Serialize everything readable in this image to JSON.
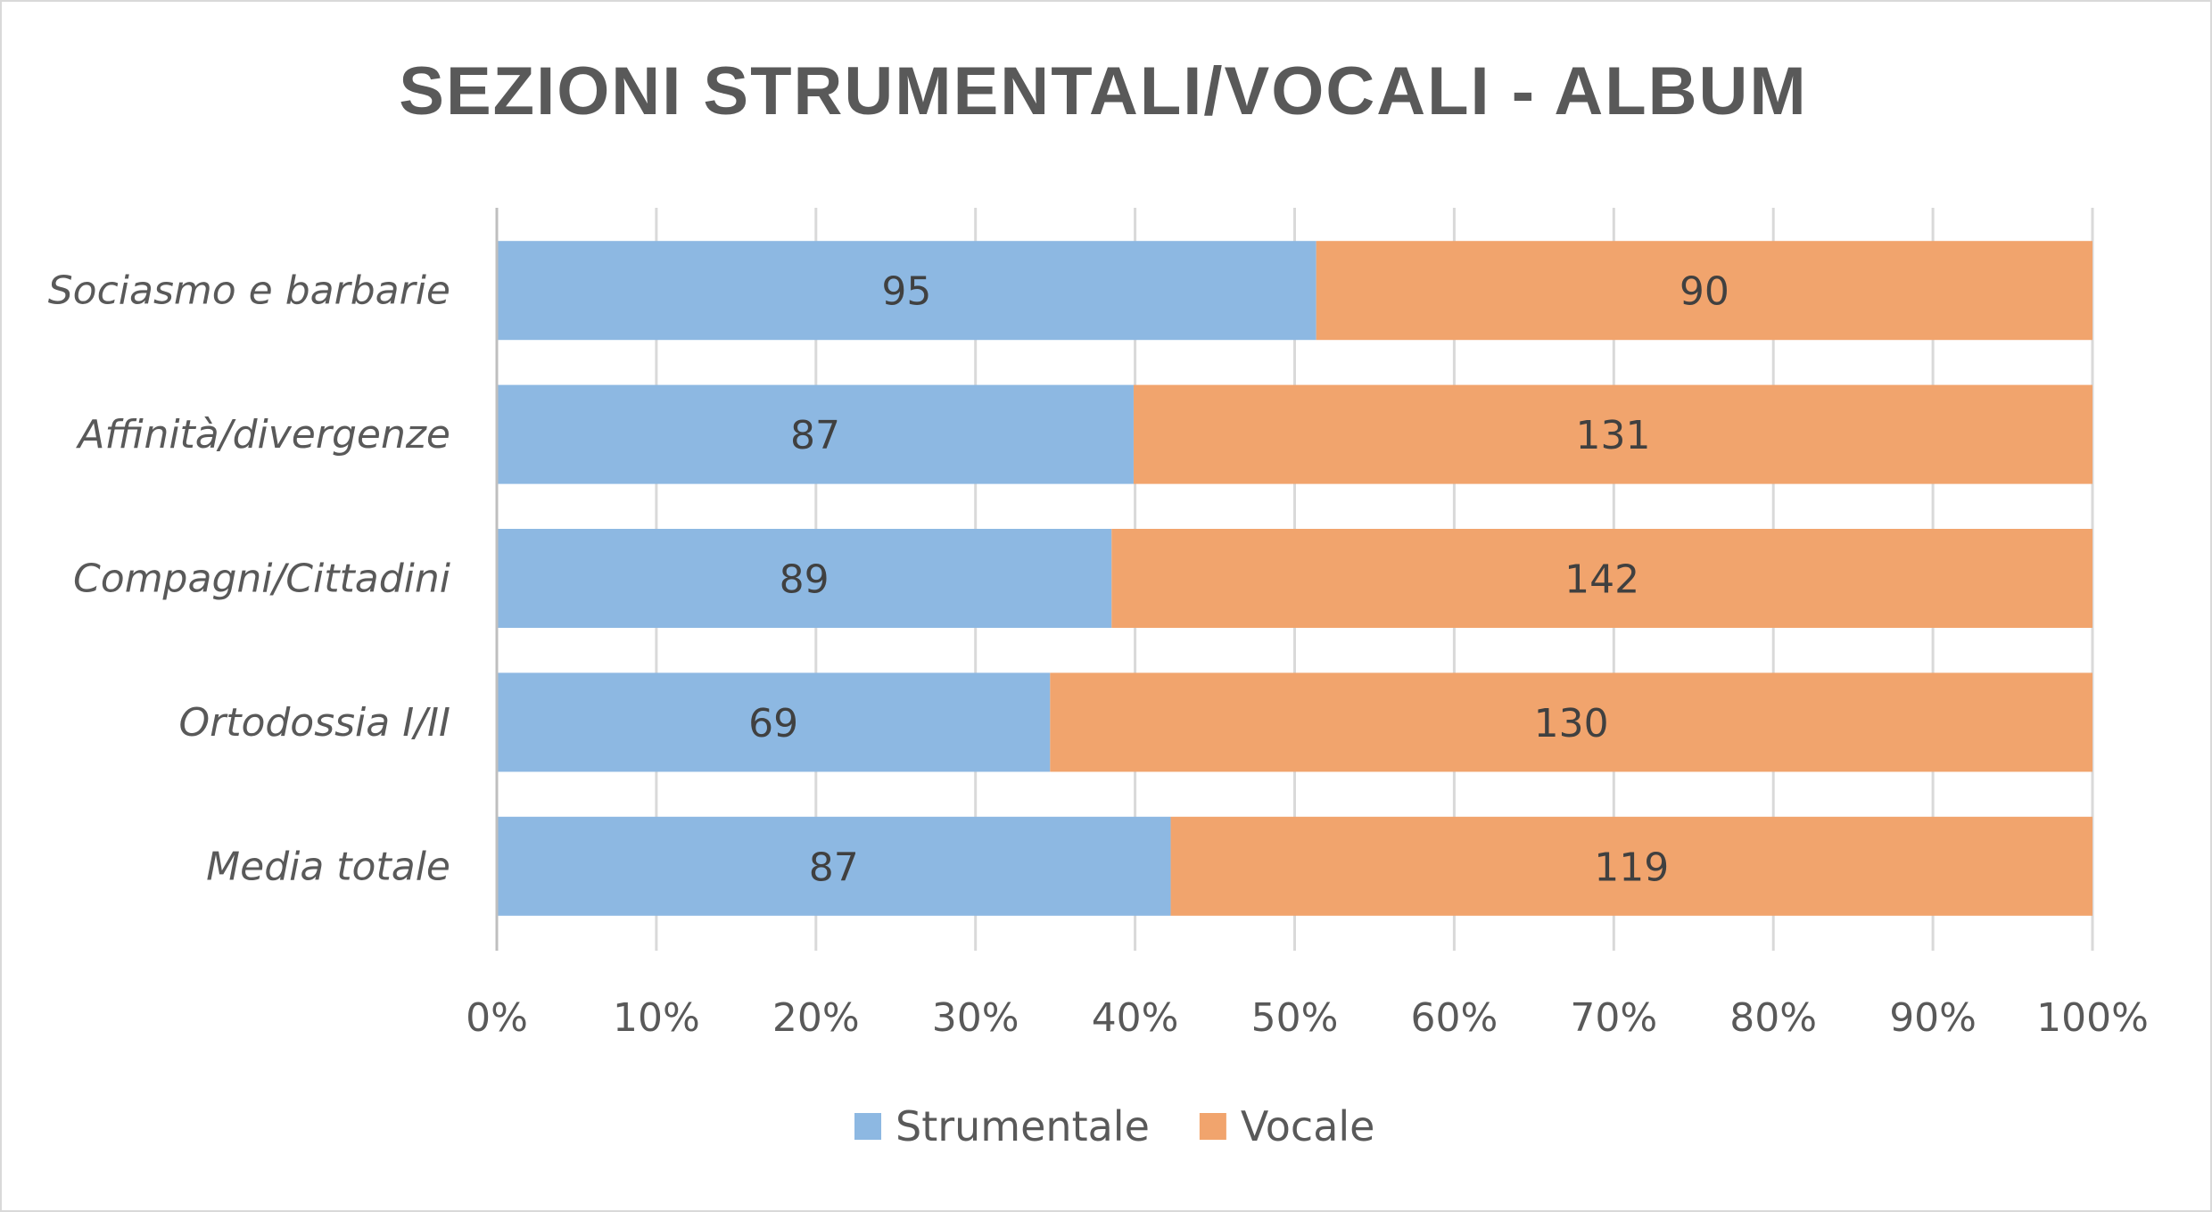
{
  "chart_data": {
    "type": "bar",
    "orientation": "horizontal",
    "stacked": "percent",
    "title": "SEZIONI STRUMENTALI/VOCALI - ALBUM",
    "categories": [
      "Sociasmo e barbarie",
      "Affinità/divergenze",
      "Compagni/Cittadini",
      "Ortodossia I/II",
      "Media totale"
    ],
    "series": [
      {
        "name": "Strumentale",
        "values": [
          95,
          87,
          89,
          69,
          87
        ],
        "color": "#8db8e2"
      },
      {
        "name": "Vocale",
        "values": [
          90,
          131,
          142,
          130,
          119
        ],
        "color": "#f1a46d"
      }
    ],
    "x_ticks": [
      "0%",
      "10%",
      "20%",
      "30%",
      "40%",
      "50%",
      "60%",
      "70%",
      "80%",
      "90%",
      "100%"
    ],
    "xlim": [
      0,
      100
    ],
    "grid": "vertical",
    "legend": "bottom",
    "data_labels": true
  }
}
